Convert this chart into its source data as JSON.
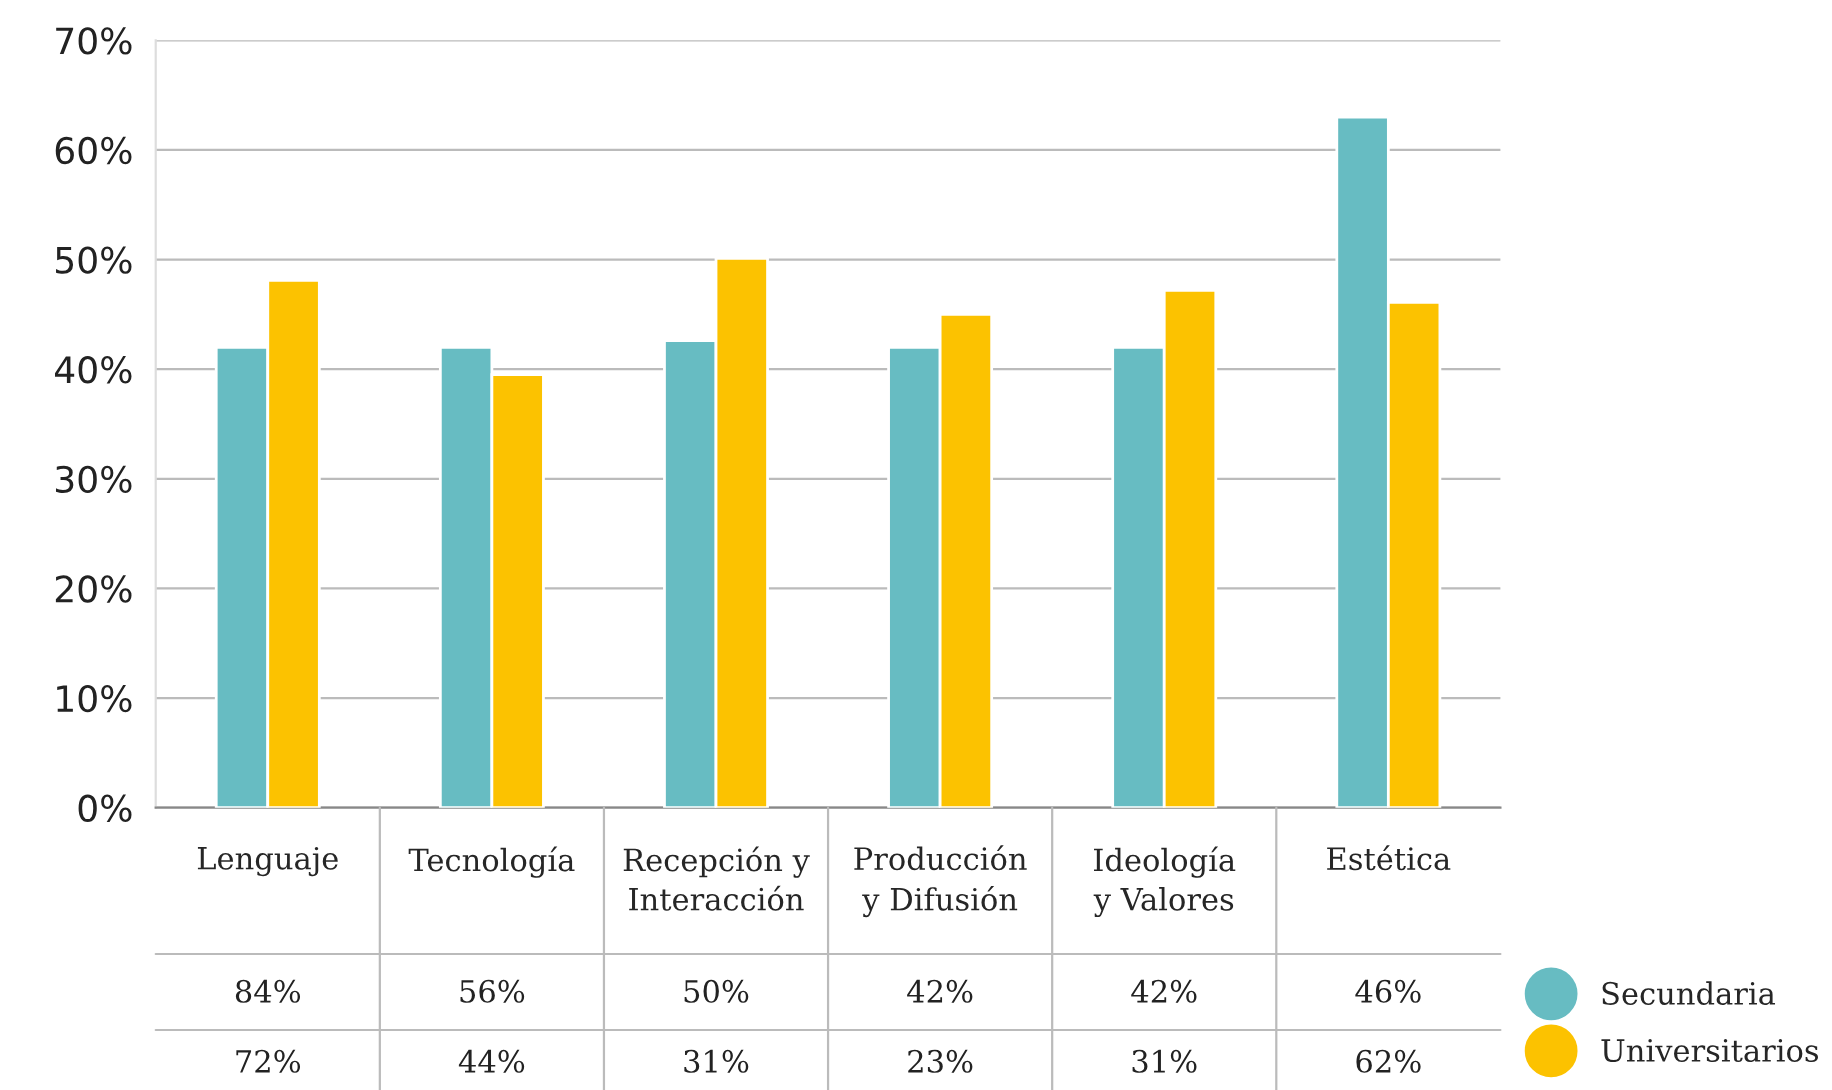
{
  "chart_data": {
    "type": "bar",
    "categories": [
      "Lenguaje",
      "Tecnología",
      "Recepción y\nInteracción",
      "Producción\ny Difusión",
      "Ideología\ny Valores",
      "Estética"
    ],
    "series": [
      {
        "name": "Secundaria",
        "color": "#67bcc2",
        "values": [
          42,
          42,
          42.6,
          42,
          42,
          63
        ]
      },
      {
        "name": "Universitarios",
        "color": "#fcc200",
        "values": [
          48.1,
          39.5,
          50.1,
          45,
          47.2,
          46.1
        ]
      }
    ],
    "ylim": [
      0,
      70
    ],
    "yticks": [
      {
        "value": 0,
        "label": "0%"
      },
      {
        "value": 10,
        "label": "10%"
      },
      {
        "value": 20,
        "label": "20%"
      },
      {
        "value": 30,
        "label": "30%"
      },
      {
        "value": 40,
        "label": "40%"
      },
      {
        "value": 50,
        "label": "50%"
      },
      {
        "value": 60,
        "label": "60%"
      },
      {
        "value": 70,
        "label": "70%"
      }
    ],
    "annotations": [
      "84%",
      "56%",
      "50%",
      "42%",
      "42%",
      "46%",
      "72%",
      "44%",
      "31%",
      "23%",
      "31%",
      "62%"
    ],
    "grid": "y",
    "legend": "bottom right"
  }
}
